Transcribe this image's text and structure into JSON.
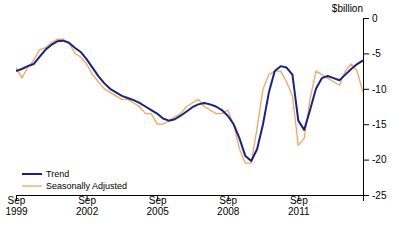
{
  "chart_data": {
    "type": "line",
    "title": "$billion",
    "categories": [
      "Sep\n1999",
      null,
      null,
      null,
      null,
      null,
      null,
      null,
      null,
      null,
      null,
      null,
      "Sep\n2002",
      null,
      null,
      null,
      null,
      null,
      null,
      null,
      null,
      null,
      null,
      null,
      "Sep\n2005",
      null,
      null,
      null,
      null,
      null,
      null,
      null,
      null,
      null,
      null,
      null,
      "Sep\n2008",
      null,
      null,
      null,
      null,
      null,
      null,
      null,
      null,
      null,
      null,
      null,
      "Sep\n2011",
      null,
      null,
      null,
      null,
      null,
      null,
      null,
      null,
      null,
      null,
      null
    ],
    "series": [
      {
        "name": "Trend",
        "color": "#1a237e",
        "values": [
          -7.5,
          -7.2,
          -6.8,
          -6.5,
          -5.5,
          -4.5,
          -3.8,
          -3.3,
          -3.2,
          -3.5,
          -4.2,
          -4.8,
          -5.8,
          -7.0,
          -8.2,
          -9.2,
          -10.0,
          -10.5,
          -11.0,
          -11.3,
          -11.6,
          -12.0,
          -12.5,
          -13.0,
          -13.5,
          -14.2,
          -14.5,
          -14.3,
          -13.8,
          -13.2,
          -12.6,
          -12.2,
          -12.0,
          -12.2,
          -12.5,
          -13.0,
          -13.8,
          -15.0,
          -17.0,
          -19.5,
          -20.2,
          -18.5,
          -15.0,
          -10.5,
          -7.5,
          -6.8,
          -7.0,
          -8.0,
          -14.5,
          -15.8,
          -13.0,
          -10.0,
          -8.5,
          -8.2,
          -8.5,
          -8.8,
          -8.0,
          -7.2,
          -6.5,
          -6.0
        ]
      },
      {
        "name": "Seasonally Adjusted",
        "color": "#f4a460",
        "values": [
          -7.0,
          -8.5,
          -7.0,
          -6.0,
          -4.5,
          -4.2,
          -3.5,
          -3.0,
          -3.0,
          -3.5,
          -5.0,
          -5.5,
          -6.5,
          -8.0,
          -9.0,
          -10.0,
          -10.5,
          -11.0,
          -11.5,
          -11.5,
          -12.0,
          -12.5,
          -13.5,
          -13.5,
          -15.0,
          -15.0,
          -14.5,
          -14.0,
          -13.5,
          -12.5,
          -12.0,
          -11.5,
          -12.5,
          -13.0,
          -13.5,
          -13.5,
          -13.0,
          -15.0,
          -18.5,
          -20.5,
          -20.5,
          -15.5,
          -10.0,
          -8.0,
          -7.5,
          -7.5,
          -9.0,
          -11.0,
          -18.0,
          -17.0,
          -11.5,
          -7.5,
          -8.0,
          -8.5,
          -9.0,
          -9.5,
          -7.5,
          -6.5,
          -7.5,
          -10.5
        ]
      }
    ],
    "ylim": [
      -25,
      0
    ],
    "yticks": [
      0,
      -5,
      -10,
      -15,
      -20,
      -25
    ],
    "grid": false,
    "legend": "lower left"
  }
}
